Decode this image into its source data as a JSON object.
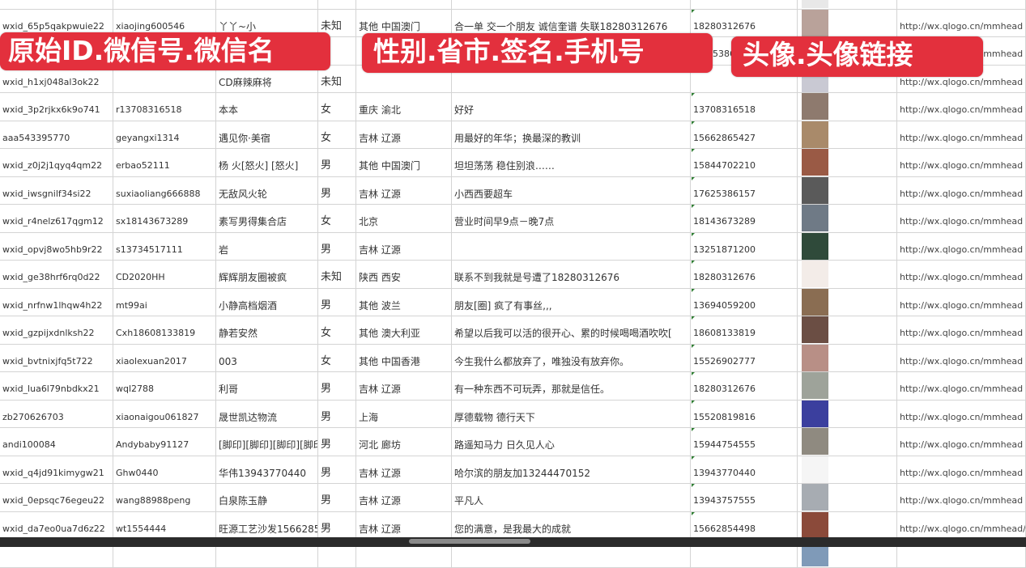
{
  "colors": {
    "overlay": "#e3303d",
    "grid": "#d4d4d4"
  },
  "overlays": [
    "原始ID.微信号.微信名",
    "性别.省市.签名.手机号",
    "头像.头像链接"
  ],
  "rows": [
    {
      "id": "",
      "wechat": "",
      "name": "",
      "gender": "",
      "region": "",
      "signature": "",
      "phone": "",
      "avatar": "#e8e8e8",
      "link": ""
    },
    {
      "id": "wxid_65p5qakpwuie22",
      "wechat": "xiaojing600546",
      "name": "丫丫~小",
      "gender": "未知",
      "region": "其他 中国澳门",
      "signature": "合一单 交一个朋友 诚信奎谱 失联18280312676",
      "phone": "18280312676",
      "avatar": "#b9a29a",
      "link": "http://wx.qlogo.cn/mmhead"
    },
    {
      "id": "",
      "wechat": "",
      "name": "",
      "gender": "",
      "region": "",
      "signature": "",
      "phone": "5386",
      "avatar": "#7d8fb0",
      "link": "http://wx.qlogo.cn/mmhead"
    },
    {
      "id": "wxid_h1xj048al3ok22",
      "wechat": "",
      "name": "CD麻辣麻将",
      "gender": "未知",
      "region": "",
      "signature": "",
      "phone": "",
      "avatar": "#c9c9d3",
      "link": "http://wx.qlogo.cn/mmhead"
    },
    {
      "id": "wxid_3p2rjkx6k9o741",
      "wechat": "r13708316518",
      "name": "本本",
      "gender": "女",
      "region": "重庆 渝北",
      "signature": "好好",
      "phone": "13708316518",
      "avatar": "#8e7a6e",
      "link": "http://wx.qlogo.cn/mmhead"
    },
    {
      "id": "aaa543395770",
      "wechat": "geyangxi1314",
      "name": "遇见你·美宿",
      "gender": "女",
      "region": "吉林 辽源",
      "signature": "用最好的年华；换最深的教训",
      "phone": "15662865427",
      "avatar": "#a98a6a",
      "link": "http://wx.qlogo.cn/mmhead"
    },
    {
      "id": "wxid_z0j2j1qyq4qm22",
      "wechat": "erbao52111",
      "name": "杨 火[怒火] [怒火]",
      "gender": "男",
      "region": "其他 中国澳门",
      "signature": "坦坦荡荡 稳住别浪……",
      "phone": "15844702210",
      "avatar": "#9a5a45",
      "link": "http://wx.qlogo.cn/mmhead"
    },
    {
      "id": "wxid_iwsgnilf34si22",
      "wechat": "suxiaoliang666888",
      "name": "无敌风火轮",
      "gender": "男",
      "region": "吉林 辽源",
      "signature": "小西西要超车",
      "phone": "17625386157",
      "avatar": "#5a5a5a",
      "link": "http://wx.qlogo.cn/mmhead"
    },
    {
      "id": "wxid_r4nelz617qgm12",
      "wechat": "sx18143673289",
      "name": "素写男得集合店",
      "gender": "女",
      "region": "北京",
      "signature": "营业时间早9点－晚7点",
      "phone": "18143673289",
      "avatar": "#6f7a86",
      "link": "http://wx.qlogo.cn/mmhead"
    },
    {
      "id": "wxid_opvj8wo5hb9r22",
      "wechat": "s13734517111",
      "name": "岩",
      "gender": "男",
      "region": "吉林 辽源",
      "signature": "",
      "phone": "13251871200",
      "avatar": "#2f4a3a",
      "link": "http://wx.qlogo.cn/mmhead"
    },
    {
      "id": "wxid_ge38hrf6rq0d22",
      "wechat": "CD2020HH",
      "name": "辉辉朋友圈被疯",
      "gender": "未知",
      "region": "陕西 西安",
      "signature": "联系不到我就是号遭了18280312676",
      "phone": "18280312676",
      "avatar": "#f3ece8",
      "link": "http://wx.qlogo.cn/mmhead"
    },
    {
      "id": "wxid_nrfnw1lhqw4h22",
      "wechat": "mt99ai",
      "name": "小静高档烟酒",
      "gender": "男",
      "region": "其他 波兰",
      "signature": "朋友[圈] 疯了有事丝,,,",
      "phone": "13694059200",
      "avatar": "#8a6d52",
      "link": "http://wx.qlogo.cn/mmhead"
    },
    {
      "id": "wxid_gzpijxdnlksh22",
      "wechat": "Cxh18608133819",
      "name": "静若安然",
      "gender": "女",
      "region": "其他 澳大利亚",
      "signature": "希望以后我可以活的很开心、累的时候喝喝酒吹吹[",
      "phone": "18608133819",
      "avatar": "#6b4e44",
      "link": "http://wx.qlogo.cn/mmhead"
    },
    {
      "id": "wxid_bvtnixjfq5t722",
      "wechat": "xiaolexuan2017",
      "name": "003",
      "gender": "女",
      "region": "其他 中国香港",
      "signature": "今生我什么都放弃了，唯独没有放弃你。",
      "phone": "15526902777",
      "avatar": "#b88f86",
      "link": "http://wx.qlogo.cn/mmhead"
    },
    {
      "id": "wxid_lua6l79nbdkx21",
      "wechat": "wql2788",
      "name": "利哥",
      "gender": "男",
      "region": "吉林 辽源",
      "signature": "有一种东西不可玩弄，那就是信任。",
      "phone": "18280312676",
      "avatar": "#9ea39a",
      "link": "http://wx.qlogo.cn/mmhead"
    },
    {
      "id": "zb270626703",
      "wechat": "xiaonaigou061827",
      "name": "晟世凯达物流",
      "gender": "男",
      "region": "上海",
      "signature": "厚德载物 德行天下",
      "phone": "15520819816",
      "avatar": "#3b3f9e",
      "link": "http://wx.qlogo.cn/mmhead"
    },
    {
      "id": "andi100084",
      "wechat": "Andybaby91127",
      "name": "[脚印][脚印][脚印][脚印]",
      "gender": "男",
      "region": "河北 廊坊",
      "signature": "路遥知马力 日久见人心",
      "phone": "15944754555",
      "avatar": "#8f8a80",
      "link": "http://wx.qlogo.cn/mmhead"
    },
    {
      "id": "wxid_q4jd91kimygw21",
      "wechat": "Ghw0440",
      "name": "华伟13943770440",
      "gender": "男",
      "region": "吉林 辽源",
      "signature": "哈尔滨的朋友加13244470152",
      "phone": "13943770440",
      "avatar": "#f5f5f5",
      "link": "http://wx.qlogo.cn/mmhead"
    },
    {
      "id": "wxid_0epsqc76egeu22",
      "wechat": "wang88988peng",
      "name": "白泉陈玉静",
      "gender": "男",
      "region": "吉林 辽源",
      "signature": "平凡人",
      "phone": "13943757555",
      "avatar": "#a7acb2",
      "link": "http://wx.qlogo.cn/mmhead"
    },
    {
      "id": "wxid_da7eo0ua7d6z22",
      "wechat": "wt1554444",
      "name": "旺源工艺沙发15662854",
      "gender": "男",
      "region": "吉林 辽源",
      "signature": "您的满意，是我最大的成就",
      "phone": "15662854498",
      "avatar": "#8b4a3a",
      "link": "http://wx.qlogo.cn/mmhead/"
    },
    {
      "id": "",
      "wechat": "",
      "name": "",
      "gender": "",
      "region": "",
      "signature": "",
      "phone": "",
      "avatar": "#7f9ab8",
      "link": ""
    }
  ]
}
